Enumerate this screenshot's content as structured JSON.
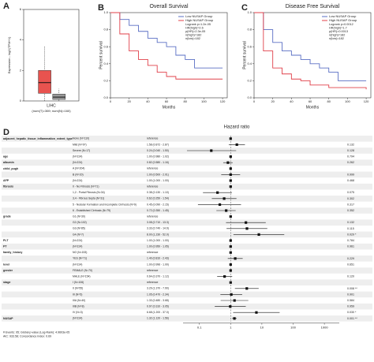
{
  "chart_data": [
    {
      "type": "box",
      "panel": "A",
      "categories": [
        "LIHC"
      ],
      "xlabel": "(num(T)=369; num(N)=160)",
      "ylabel": "Expression - log2(TPM+1)",
      "ylim": [
        0,
        6
      ],
      "yticks": [
        0,
        2,
        4,
        6
      ],
      "series": [
        {
          "color": "#e8534f",
          "q1": 0.5,
          "median": 1.2,
          "q3": 2.0,
          "whisker_low": 0,
          "whisker_high": 3.6
        },
        {
          "color": "#9a9a9a",
          "q1": 0.1,
          "median": 0.25,
          "q3": 0.45,
          "whisker_low": 0,
          "whisker_high": 0.8
        }
      ]
    },
    {
      "type": "line",
      "panel": "B",
      "title": "Overall Survival",
      "xlabel": "Months",
      "ylabel": "Percent survival",
      "xlim": [
        0,
        125
      ],
      "xticks": [
        0,
        20,
        40,
        60,
        80,
        100,
        120
      ],
      "ylim": [
        0,
        1
      ],
      "yticks": [
        {
          "value": 0,
          "label": "0.0"
        },
        0.2,
        0.4,
        0.6,
        0.8,
        {
          "value": 1,
          "label": "1.0"
        }
      ],
      "annotations": [
        "Logrank p=1.2e-05",
        "HR(high)=2.6",
        "p(HR)=2.3e-05",
        "n(high)=182",
        "n(low)=182"
      ],
      "series": [
        {
          "name": "Low NUSAP Group",
          "color": "#5a6fc4",
          "x": [
            0,
            10,
            20,
            30,
            40,
            50,
            60,
            70,
            80,
            90,
            100,
            120
          ],
          "values": [
            1,
            0.92,
            0.85,
            0.78,
            0.7,
            0.65,
            0.6,
            0.5,
            0.45,
            0.35,
            0.35,
            0.35
          ]
        },
        {
          "name": "High NUSAP Group",
          "color": "#e0404a",
          "x": [
            0,
            10,
            20,
            30,
            40,
            50,
            60,
            70,
            80,
            90,
            100,
            120
          ],
          "values": [
            1,
            0.75,
            0.55,
            0.45,
            0.38,
            0.3,
            0.25,
            0.22,
            0.22,
            0.22,
            0.22,
            0.22
          ]
        }
      ]
    },
    {
      "type": "line",
      "panel": "C",
      "title": "Disease Free Survival",
      "xlabel": "Months",
      "ylabel": "Percent survival",
      "xlim": [
        0,
        125
      ],
      "xticks": [
        0,
        20,
        40,
        60,
        80,
        100,
        120
      ],
      "ylim": [
        0,
        1
      ],
      "yticks": [
        {
          "value": 0,
          "label": "0.0"
        },
        0.2,
        0.4,
        0.6,
        0.8,
        {
          "value": 1,
          "label": "1.0"
        }
      ],
      "annotations": [
        "Logrank p=0.0012",
        "HR(high)=1.7",
        "p(HR)=0.0013",
        "n(high)=182",
        "n(low)=182"
      ],
      "series": [
        {
          "name": "Low NUSAP Group",
          "color": "#5a6fc4",
          "x": [
            0,
            10,
            20,
            30,
            40,
            50,
            60,
            70,
            80,
            90,
            120
          ],
          "values": [
            1,
            0.8,
            0.65,
            0.55,
            0.5,
            0.45,
            0.4,
            0.35,
            0.3,
            0.2,
            0.2
          ]
        },
        {
          "name": "High NUSAP Group",
          "color": "#e0404a",
          "x": [
            0,
            10,
            20,
            30,
            40,
            50,
            60,
            70,
            80,
            90,
            120
          ],
          "values": [
            1,
            0.55,
            0.35,
            0.28,
            0.22,
            0.2,
            0.15,
            0.15,
            0.12,
            0.12,
            0.1
          ]
        }
      ]
    },
    {
      "type": "forest",
      "panel": "D",
      "title": "Hazard ratio",
      "log_scale": true,
      "xlim": [
        0.03,
        3000
      ],
      "xticks": [
        0.1,
        1,
        10,
        100,
        1000
      ],
      "footer": [
        "# Events: 95; Global p-value (Log-Rank): 4.9603e-05",
        "AIC: 933.58; Concordance Index: 0.69"
      ],
      "rows": [
        {
          "variable": "adjacent_hepatic_tissue_inflammation_extent_type",
          "level": "None (N=110)",
          "est": "reference",
          "hr": 1,
          "lo": null,
          "hi": null,
          "p": null
        },
        {
          "variable": null,
          "level": "Mild (N=97)",
          "est": "1.58 (0.872 - 2.87)",
          "hr": 1.58,
          "lo": 0.872,
          "hi": 2.87,
          "p": "0.132"
        },
        {
          "variable": null,
          "level": "Severe (N=17)",
          "est": "0.24 (0.040 - 1.50)",
          "hr": 0.24,
          "lo": 0.04,
          "hi": 1.5,
          "p": "0.128"
        },
        {
          "variable": "age",
          "level": "(N=224)",
          "est": "1.00 (0.980 - 1.02)",
          "hr": 1.0,
          "lo": 0.98,
          "hi": 1.02,
          "p": "0.794"
        },
        {
          "variable": "albumin",
          "level": "(N=224)",
          "est": "0.82 (0.580 - 1.16)",
          "hr": 0.82,
          "lo": 0.58,
          "hi": 1.16,
          "p": "0.262"
        },
        {
          "variable": "child_pugh",
          "level": "A (N=204)",
          "est": "reference",
          "hr": 1,
          "lo": null,
          "hi": null,
          "p": null
        },
        {
          "variable": null,
          "level": "B (N=20)",
          "est": "1.00 (0.500 - 2.01)",
          "hr": 1.0,
          "lo": 0.5,
          "hi": 2.01,
          "p": "0.999"
        },
        {
          "variable": "AFP",
          "level": "(N=224)",
          "est": "1.00 (1.000 - 1.00)",
          "hr": 1.0,
          "lo": 1.0,
          "hi": 1.0,
          "p": "0.468"
        },
        {
          "variable": "fibrosis",
          "level": "0 - No Fibrosis (N=71)",
          "est": "reference",
          "hr": 1,
          "lo": null,
          "hi": null,
          "p": null
        },
        {
          "variable": null,
          "level": "1,2 - Portal Fibrosis (N=34)",
          "est": "0.38 (0.130 - 1.10)",
          "hr": 0.38,
          "lo": 0.13,
          "hi": 1.1,
          "p": "0.075"
        },
        {
          "variable": null,
          "level": "3,4 - Fibrous Septa (N=31)",
          "est": "0.62 (0.250 - 1.54)",
          "hr": 0.62,
          "lo": 0.25,
          "hi": 1.54,
          "p": "0.302"
        },
        {
          "variable": null,
          "level": "5 - Nodular Formation and Incomplete Cirrhosis (N=9)",
          "est": "0.45 (0.090 - 2.15)",
          "hr": 0.45,
          "lo": 0.09,
          "hi": 2.15,
          "p": "0.317"
        },
        {
          "variable": null,
          "level": "6 - Established Cirrhosis (N=79)",
          "est": "0.72 (0.350 - 1.45)",
          "hr": 0.72,
          "lo": 0.35,
          "hi": 1.45,
          "p": "0.352"
        },
        {
          "variable": "grade",
          "level": "G1 (N=30)",
          "est": "reference",
          "hr": 1,
          "lo": null,
          "hi": null,
          "p": null
        },
        {
          "variable": null,
          "level": "G2 (N=102)",
          "est": "3.08 (0.710 - 13.3)",
          "hr": 3.08,
          "lo": 0.71,
          "hi": 13.3,
          "p": "0.132"
        },
        {
          "variable": null,
          "level": "G3 (N=85)",
          "est": "3.33 (0.740 - 14.9)",
          "hr": 3.33,
          "lo": 0.74,
          "hi": 14.9,
          "p": "0.115"
        },
        {
          "variable": null,
          "level": "G4 (N=7)",
          "est": "8.00 (1.230 - 52.0)",
          "hr": 8.0,
          "lo": 1.23,
          "hi": 52.0,
          "p": "0.029 *"
        },
        {
          "variable": "PLT",
          "level": "(N=224)",
          "est": "1.00 (1.000 - 1.00)",
          "hr": 1.0,
          "lo": 1.0,
          "hi": 1.0,
          "p": "0.784"
        },
        {
          "variable": "PT",
          "level": "(N=224)",
          "est": "1.00 (0.950 - 1.05)",
          "hr": 1.0,
          "lo": 0.95,
          "hi": 1.05,
          "p": "0.961"
        },
        {
          "variable": "family_history",
          "level": "NO (N=153)",
          "est": "reference",
          "hr": 1,
          "lo": null,
          "hi": null,
          "p": null
        },
        {
          "variable": null,
          "level": "YES (N=71)",
          "est": "1.40 (0.810 - 2.43)",
          "hr": 1.4,
          "lo": 0.81,
          "hi": 2.43,
          "p": "0.229"
        },
        {
          "variable": "level",
          "level": "(N=224)",
          "est": "1.00 (0.996 - 1.00)",
          "hr": 1.0,
          "lo": 0.996,
          "hi": 1.0,
          "p": "0.651"
        },
        {
          "variable": "gender",
          "level": "FEMALE (N=70)",
          "est": "reference",
          "hr": 1,
          "lo": null,
          "hi": null,
          "p": null
        },
        {
          "variable": null,
          "level": "MALE (N=154)",
          "est": "0.64 (0.370 - 1.12)",
          "hr": 0.64,
          "lo": 0.37,
          "hi": 1.12,
          "p": "0.120"
        },
        {
          "variable": "stage",
          "level": "I (N=106)",
          "est": "reference",
          "hr": 1,
          "lo": null,
          "hi": null,
          "p": null
        },
        {
          "variable": null,
          "level": "II (N=55)",
          "est": "3.29 (1.370 - 7.90)",
          "hr": 3.29,
          "lo": 1.37,
          "hi": 7.9,
          "p": "0.008 **"
        },
        {
          "variable": null,
          "level": "III (N=5)",
          "est": "1.05 (0.470 - 2.34)",
          "hr": 1.05,
          "lo": 0.47,
          "hi": 2.34,
          "p": "0.901"
        },
        {
          "variable": null,
          "level": "IIIA (N=40)",
          "est": "1.33 (0.480 - 3.68)",
          "hr": 1.33,
          "lo": 0.48,
          "hi": 3.68,
          "p": "0.584"
        },
        {
          "variable": null,
          "level": "IIIB (N=8)",
          "est": "0.97 (0.310 - 3.05)",
          "hr": 0.97,
          "lo": 0.31,
          "hi": 3.05,
          "p": "0.959"
        },
        {
          "variable": null,
          "level": "IV (N=3)",
          "est": "6.68 (1.200 - 37.0)",
          "hr": 6.68,
          "lo": 1.2,
          "hi": 37.0,
          "p": "0.030 *"
        },
        {
          "variable": "NUSAP",
          "level": "(N=224)",
          "est": "1.32 (1.120 - 1.56)",
          "hr": 1.32,
          "lo": 1.12,
          "hi": 1.56,
          "p": "0.001 **"
        }
      ]
    }
  ]
}
